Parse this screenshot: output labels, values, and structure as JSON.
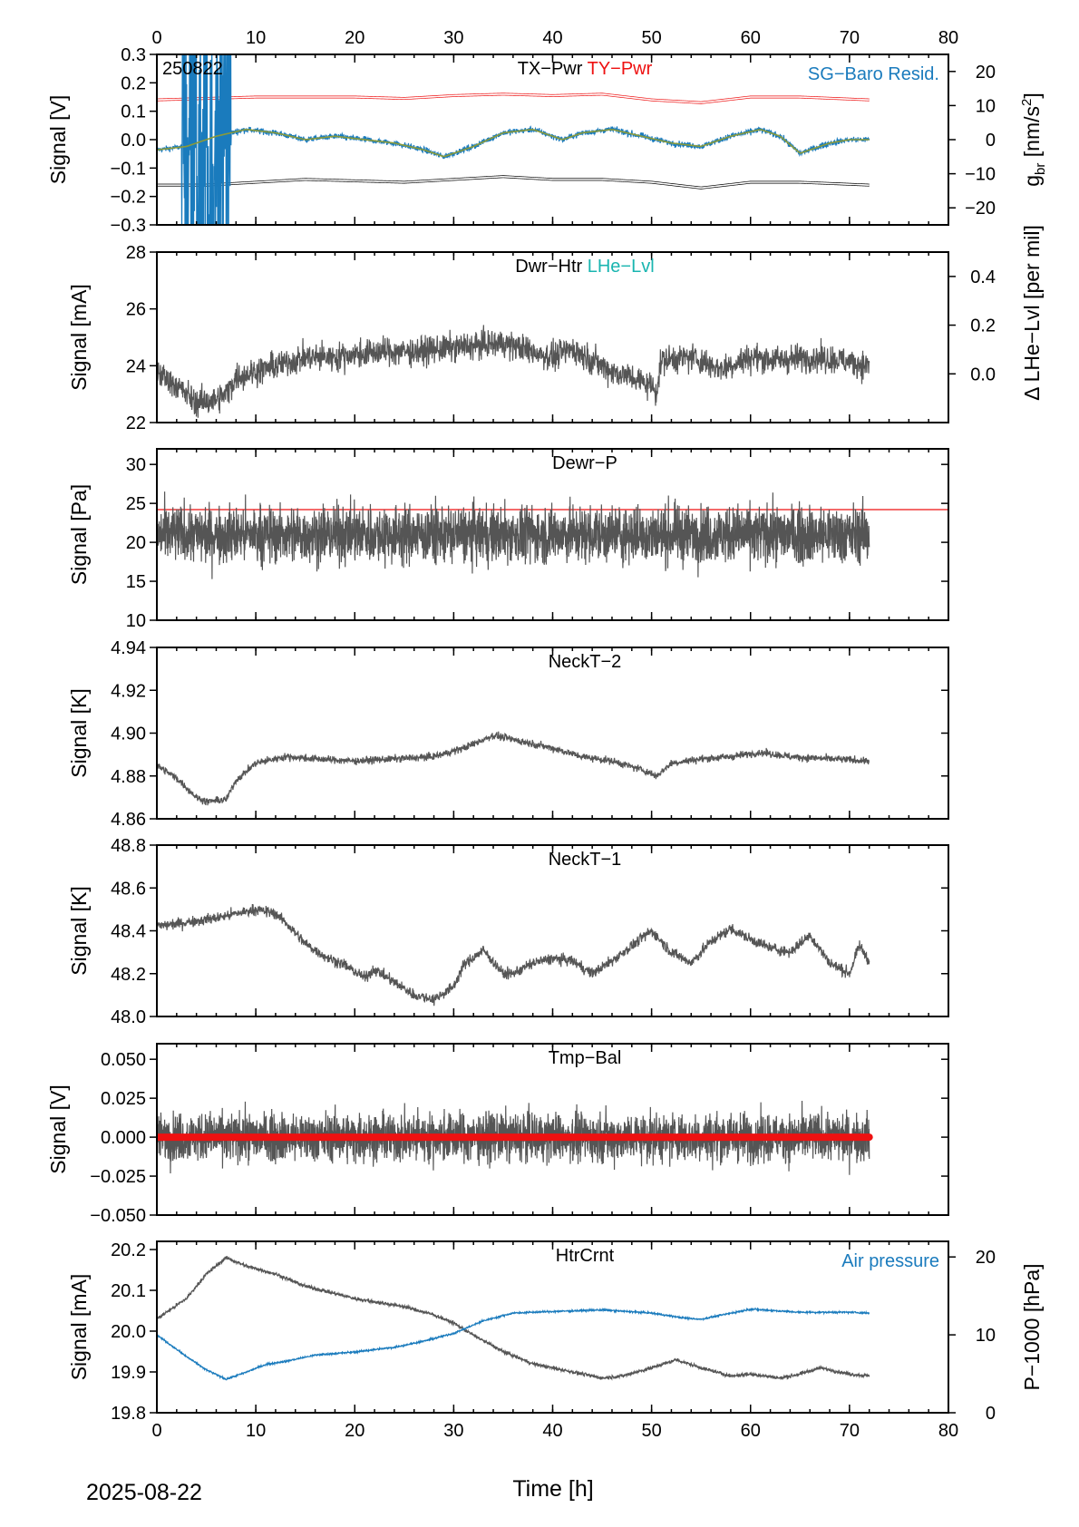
{
  "figure": {
    "date": "2025-08-22",
    "xlabel": "Time [h]",
    "x_ticks": [
      0,
      10,
      20,
      30,
      40,
      50,
      60,
      70,
      80
    ],
    "xlim": [
      0,
      80
    ],
    "data_end_hour": 72
  },
  "chart_data": [
    {
      "type": "line",
      "id": "p1",
      "ylabel": "Signal [V]",
      "ylim": [
        -0.3,
        0.3
      ],
      "y_ticks": [
        -0.3,
        -0.2,
        -0.1,
        0.0,
        0.1,
        0.2,
        0.3
      ],
      "y_tick_labels": [
        "−0.3",
        "−0.2",
        "−0.1",
        "0.0",
        "0.1",
        "0.2",
        "0.3"
      ],
      "y2label_main": "g",
      "y2label_sub": "br",
      "y2label_unit": " [nm/s",
      "y2label_sup": "2",
      "y2label_close": "]",
      "y2lim": [
        -25,
        25
      ],
      "y2_ticks": [
        -20,
        -10,
        0,
        10,
        20
      ],
      "y2_tick_labels": [
        "−20",
        "−10",
        "0",
        "10",
        "20"
      ],
      "corner_label": "250822",
      "labels": [
        {
          "text": "TX−Pwr",
          "color": "#000000"
        },
        {
          "text": "TY−Pwr",
          "color": "#ee1111"
        }
      ],
      "right_label": {
        "text": "SG−Baro Resid.",
        "color": "#1a7bbd"
      },
      "series": [
        {
          "name": "TY−Pwr",
          "color": "#ee1111",
          "axis": "left",
          "x": [
            0,
            5,
            10,
            15,
            20,
            25,
            30,
            35,
            40,
            45,
            50,
            55,
            60,
            65,
            72
          ],
          "y": [
            0.14,
            0.145,
            0.15,
            0.15,
            0.15,
            0.145,
            0.155,
            0.16,
            0.155,
            0.16,
            0.14,
            0.13,
            0.15,
            0.15,
            0.14
          ]
        },
        {
          "name": "TX−Pwr",
          "color": "#000000",
          "axis": "left",
          "x": [
            0,
            5,
            10,
            15,
            20,
            25,
            30,
            35,
            40,
            45,
            50,
            55,
            60,
            65,
            72
          ],
          "y": [
            -0.16,
            -0.16,
            -0.15,
            -0.14,
            -0.145,
            -0.15,
            -0.14,
            -0.13,
            -0.14,
            -0.14,
            -0.15,
            -0.17,
            -0.15,
            -0.15,
            -0.16
          ]
        },
        {
          "name": "SG−Baro Resid.",
          "color": "#1a7bbd",
          "axis": "right",
          "x": [
            0,
            3,
            6,
            9,
            12,
            15,
            18,
            21,
            24,
            27,
            29,
            32,
            35,
            38,
            41,
            43,
            46,
            49,
            52,
            55,
            58,
            61,
            63,
            65,
            68,
            70,
            72
          ],
          "y": [
            -3,
            -2,
            1,
            3,
            2,
            0,
            1,
            0,
            -1,
            -3,
            -5,
            -2,
            2,
            3,
            0,
            2,
            3,
            1,
            -1,
            -2,
            1,
            3,
            1,
            -4,
            -1,
            0,
            0
          ],
          "noise_range": [
            2.5,
            7.5
          ]
        }
      ]
    },
    {
      "type": "line",
      "id": "p2",
      "ylabel": "Signal [mA]",
      "ylim": [
        22,
        28
      ],
      "y_ticks": [
        22,
        24,
        26,
        28
      ],
      "y_tick_labels": [
        "22",
        "24",
        "26",
        "28"
      ],
      "y2label": "Δ LHe−Lvl [per mil]",
      "y2lim": [
        -0.2,
        0.5
      ],
      "y2_ticks": [
        0.0,
        0.2,
        0.4
      ],
      "y2_tick_labels": [
        "0.0",
        "0.2",
        "0.4"
      ],
      "labels": [
        {
          "text": "Dwr−Htr",
          "color": "#000000"
        },
        {
          "text": "LHe−Lvl",
          "color": "#19b5b0"
        }
      ],
      "series": [
        {
          "name": "Dwr−Htr",
          "color": "#555555",
          "x": [
            0,
            2,
            4,
            6,
            7,
            8,
            10,
            12,
            15,
            18,
            20,
            23,
            26,
            29,
            32,
            35,
            37,
            40,
            42,
            44,
            46,
            48,
            50,
            50.5,
            51,
            54,
            57,
            60,
            63,
            66,
            69,
            72
          ],
          "y": [
            23.8,
            23.3,
            22.7,
            22.8,
            23.0,
            23.6,
            23.8,
            24.0,
            24.3,
            24.3,
            24.4,
            24.5,
            24.5,
            24.6,
            24.7,
            24.8,
            24.6,
            24.3,
            24.6,
            24.2,
            23.8,
            23.6,
            23.3,
            23.1,
            24.2,
            24.3,
            23.9,
            24.3,
            24.2,
            24.3,
            24.2,
            24.0
          ],
          "noise": 0.35
        }
      ]
    },
    {
      "type": "line",
      "id": "p3",
      "ylabel": "Signal [Pa]",
      "ylim": [
        10,
        32
      ],
      "y_ticks": [
        10,
        15,
        20,
        25,
        30
      ],
      "y_tick_labels": [
        "10",
        "15",
        "20",
        "25",
        "30"
      ],
      "labels": [
        {
          "text": "Dewr−P",
          "color": "#000000"
        }
      ],
      "reference_line": {
        "y": 24.2,
        "color": "#ee1111"
      },
      "series": [
        {
          "name": "Dewr−P",
          "color": "#555555",
          "x": [
            0,
            72
          ],
          "y": [
            21,
            21
          ],
          "noise": 2.6
        }
      ]
    },
    {
      "type": "line",
      "id": "p4",
      "ylabel": "Signal [K]",
      "ylim": [
        4.86,
        4.94
      ],
      "y_ticks": [
        4.86,
        4.88,
        4.9,
        4.92,
        4.94
      ],
      "y_tick_labels": [
        "4.86",
        "4.88",
        "4.90",
        "4.92",
        "4.94"
      ],
      "labels": [
        {
          "text": "NeckT−2",
          "color": "#000000"
        }
      ],
      "series": [
        {
          "name": "NeckT−2",
          "color": "#555555",
          "x": [
            0,
            2,
            4,
            5,
            7,
            8,
            10,
            13,
            16,
            20,
            24,
            28,
            31,
            34,
            37,
            40,
            43,
            46,
            49,
            50.5,
            52,
            55,
            58,
            61,
            64,
            68,
            72
          ],
          "y": [
            4.885,
            4.879,
            4.87,
            4.868,
            4.869,
            4.878,
            4.886,
            4.889,
            4.888,
            4.887,
            4.888,
            4.889,
            4.893,
            4.899,
            4.896,
            4.893,
            4.889,
            4.887,
            4.883,
            4.88,
            4.886,
            4.888,
            4.889,
            4.891,
            4.889,
            4.888,
            4.887
          ],
          "noise": 0.0012
        }
      ]
    },
    {
      "type": "line",
      "id": "p5",
      "ylabel": "Signal [K]",
      "ylim": [
        48.0,
        48.8
      ],
      "y_ticks": [
        48.0,
        48.2,
        48.4,
        48.6,
        48.8
      ],
      "y_tick_labels": [
        "48.0",
        "48.2",
        "48.4",
        "48.6",
        "48.8"
      ],
      "labels": [
        {
          "text": "NeckT−1",
          "color": "#000000"
        }
      ],
      "series": [
        {
          "name": "NeckT−1",
          "color": "#555555",
          "x": [
            0,
            3,
            6,
            9,
            10,
            12,
            13,
            15,
            17,
            19,
            21,
            22,
            24,
            26,
            28,
            30,
            31,
            33,
            35,
            36,
            38,
            40,
            42,
            44,
            46,
            48,
            50,
            52,
            54,
            56,
            58,
            60,
            62,
            64,
            66,
            68,
            70,
            71,
            72
          ],
          "y": [
            48.42,
            48.44,
            48.46,
            48.49,
            48.5,
            48.48,
            48.44,
            48.34,
            48.28,
            48.24,
            48.18,
            48.22,
            48.16,
            48.1,
            48.08,
            48.14,
            48.24,
            48.31,
            48.2,
            48.2,
            48.25,
            48.27,
            48.26,
            48.2,
            48.26,
            48.33,
            48.4,
            48.3,
            48.25,
            48.35,
            48.41,
            48.36,
            48.32,
            48.3,
            48.38,
            48.25,
            48.2,
            48.33,
            48.26
          ],
          "noise": 0.018
        }
      ]
    },
    {
      "type": "line",
      "id": "p6",
      "ylabel": "Signal [V]",
      "ylim": [
        -0.05,
        0.06
      ],
      "y_ticks": [
        -0.05,
        -0.025,
        0.0,
        0.025,
        0.05
      ],
      "y_tick_labels": [
        "−0.050",
        "−0.025",
        "0.000",
        "0.025",
        "0.050"
      ],
      "labels": [
        {
          "text": "Tmp−Bal",
          "color": "#000000"
        }
      ],
      "series": [
        {
          "name": "Tmp−Bal",
          "color": "#555555",
          "x": [
            0,
            72
          ],
          "y": [
            0,
            0
          ],
          "noise": 0.011
        },
        {
          "name": "Tmp−Bal zero",
          "color": "#ee1111",
          "x": [
            0,
            72
          ],
          "y": [
            0,
            0
          ],
          "noise": 0
        }
      ]
    },
    {
      "type": "line",
      "id": "p7",
      "ylabel": "Signal [mA]",
      "ylim": [
        19.8,
        20.22
      ],
      "y_ticks": [
        19.8,
        19.9,
        20.0,
        20.1,
        20.2
      ],
      "y_tick_labels": [
        "19.8",
        "19.9",
        "20.0",
        "20.1",
        "20.2"
      ],
      "y2label": "P−1000 [hPa]",
      "y2lim": [
        0,
        22
      ],
      "y2_ticks": [
        0,
        10,
        20
      ],
      "y2_tick_labels": [
        "0",
        "10",
        "20"
      ],
      "labels": [
        {
          "text": "HtrCrnt",
          "color": "#000000"
        }
      ],
      "right_label": {
        "text": "Air pressure",
        "color": "#1a7bbd"
      },
      "series": [
        {
          "name": "HtrCrnt",
          "color": "#555555",
          "axis": "left",
          "x": [
            0,
            3,
            5,
            7,
            9,
            12,
            15,
            20,
            25,
            28,
            30,
            32,
            35,
            38,
            40,
            42,
            45,
            47,
            50,
            52.5,
            55,
            58,
            60,
            63,
            65,
            67,
            70,
            72
          ],
          "y": [
            20.03,
            20.08,
            20.14,
            20.18,
            20.16,
            20.14,
            20.11,
            20.08,
            20.06,
            20.04,
            20.02,
            19.99,
            19.95,
            19.92,
            19.91,
            19.9,
            19.885,
            19.89,
            19.91,
            19.93,
            19.91,
            19.89,
            19.895,
            19.885,
            19.895,
            19.91,
            19.895,
            19.89
          ],
          "noise": 0.003
        },
        {
          "name": "Air pressure",
          "color": "#1a7bbd",
          "axis": "right",
          "x": [
            0,
            3,
            5,
            7,
            9,
            11,
            13,
            16,
            20,
            24,
            27,
            30,
            33,
            36,
            40,
            45,
            50,
            53,
            55,
            60,
            65,
            70,
            72
          ],
          "y": [
            10.0,
            7.2,
            5.5,
            4.3,
            5.2,
            6.2,
            6.6,
            7.4,
            7.8,
            8.4,
            9.2,
            10.2,
            11.8,
            12.8,
            13.0,
            13.2,
            12.8,
            12.2,
            12.0,
            13.3,
            12.9,
            12.9,
            12.8
          ],
          "noise": 0.08
        }
      ]
    }
  ]
}
